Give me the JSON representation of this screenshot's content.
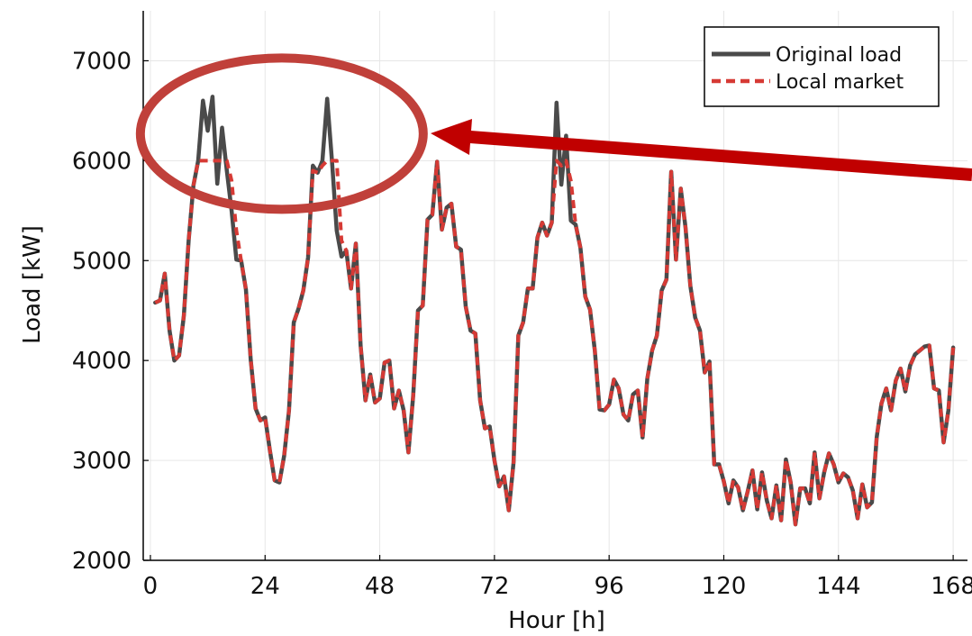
{
  "chart_data": {
    "type": "line",
    "title": "",
    "xlabel": "Hour [h]",
    "ylabel": "Load [kW]",
    "xlim": [
      -1.5,
      171
    ],
    "ylim": [
      2000,
      7500
    ],
    "xticks": [
      0,
      24,
      48,
      72,
      96,
      120,
      144,
      168
    ],
    "yticks": [
      2000,
      3000,
      4000,
      5000,
      6000,
      7000
    ],
    "grid": true,
    "legend_position": "top-right",
    "series": [
      {
        "name": "Original load",
        "color": "#4a4a4a",
        "style": "solid",
        "x": [
          1,
          2,
          3,
          4,
          5,
          6,
          7,
          8,
          9,
          10,
          11,
          12,
          13,
          14,
          15,
          16,
          17,
          18,
          19,
          20,
          21,
          22,
          23,
          24,
          25,
          26,
          27,
          28,
          29,
          30,
          31,
          32,
          33,
          34,
          35,
          36,
          37,
          38,
          39,
          40,
          41,
          42,
          43,
          44,
          45,
          46,
          47,
          48,
          49,
          50,
          51,
          52,
          53,
          54,
          55,
          56,
          57,
          58,
          59,
          60,
          61,
          62,
          63,
          64,
          65,
          66,
          67,
          68,
          69,
          70,
          71,
          72,
          73,
          74,
          75,
          76,
          77,
          78,
          79,
          80,
          81,
          82,
          83,
          84,
          85,
          86,
          87,
          88,
          89,
          90,
          91,
          92,
          93,
          94,
          95,
          96,
          97,
          98,
          99,
          100,
          101,
          102,
          103,
          104,
          105,
          106,
          107,
          108,
          109,
          110,
          111,
          112,
          113,
          114,
          115,
          116,
          117,
          118,
          119,
          120,
          121,
          122,
          123,
          124,
          125,
          126,
          127,
          128,
          129,
          130,
          131,
          132,
          133,
          134,
          135,
          136,
          137,
          138,
          139,
          140,
          141,
          142,
          143,
          144,
          145,
          146,
          147,
          148,
          149,
          150,
          151,
          152,
          153,
          154,
          155,
          156,
          157,
          158,
          159,
          160,
          161,
          162,
          163,
          164,
          165,
          166,
          167,
          168
        ],
        "values": [
          4580,
          4600,
          4870,
          4300,
          4000,
          4050,
          4450,
          5200,
          5750,
          6000,
          6600,
          6300,
          6640,
          5770,
          6330,
          5900,
          5500,
          5010,
          5000,
          4710,
          4010,
          3520,
          3400,
          3430,
          3100,
          2800,
          2780,
          3050,
          3500,
          4380,
          4520,
          4700,
          5030,
          5950,
          5880,
          6000,
          6620,
          6000,
          5300,
          5040,
          5100,
          4720,
          5170,
          4150,
          3600,
          3860,
          3580,
          3620,
          3980,
          4000,
          3520,
          3700,
          3500,
          3080,
          3650,
          4500,
          4550,
          5410,
          5460,
          5990,
          5310,
          5530,
          5570,
          5140,
          5110,
          4540,
          4300,
          4270,
          3600,
          3320,
          3340,
          3000,
          2740,
          2840,
          2500,
          2980,
          4250,
          4380,
          4720,
          4720,
          5230,
          5380,
          5250,
          5380,
          6580,
          5760,
          6250,
          5400,
          5360,
          5130,
          4640,
          4510,
          4100,
          3510,
          3500,
          3560,
          3810,
          3720,
          3460,
          3400,
          3660,
          3700,
          3230,
          3820,
          4100,
          4250,
          4700,
          4810,
          5890,
          5010,
          5720,
          5330,
          4750,
          4430,
          4300,
          3880,
          3990,
          2960,
          2960,
          2790,
          2570,
          2800,
          2730,
          2500,
          2690,
          2900,
          2510,
          2880,
          2600,
          2420,
          2750,
          2400,
          3010,
          2780,
          2360,
          2720,
          2720,
          2570,
          3080,
          2620,
          2880,
          3070,
          2960,
          2780,
          2870,
          2830,
          2700,
          2420,
          2760,
          2530,
          2580,
          3230,
          3570,
          3720,
          3500,
          3800,
          3920,
          3690,
          3950,
          4060,
          4100,
          4140,
          4150,
          3720,
          3700,
          3180,
          3500,
          4130
        ]
      },
      {
        "name": "Local market",
        "color": "#d63a35",
        "style": "dashed",
        "x": [
          1,
          2,
          3,
          4,
          5,
          6,
          7,
          8,
          9,
          10,
          11,
          12,
          13,
          14,
          15,
          16,
          17,
          18,
          19,
          20,
          21,
          22,
          23,
          24,
          25,
          26,
          27,
          28,
          29,
          30,
          31,
          32,
          33,
          34,
          35,
          36,
          37,
          38,
          39,
          40,
          41,
          42,
          43,
          44,
          45,
          46,
          47,
          48,
          49,
          50,
          51,
          52,
          53,
          54,
          55,
          56,
          57,
          58,
          59,
          60,
          61,
          62,
          63,
          64,
          65,
          66,
          67,
          68,
          69,
          70,
          71,
          72,
          73,
          74,
          75,
          76,
          77,
          78,
          79,
          80,
          81,
          82,
          83,
          84,
          85,
          86,
          87,
          88,
          89,
          90,
          91,
          92,
          93,
          94,
          95,
          96,
          97,
          98,
          99,
          100,
          101,
          102,
          103,
          104,
          105,
          106,
          107,
          108,
          109,
          110,
          111,
          112,
          113,
          114,
          115,
          116,
          117,
          118,
          119,
          120,
          121,
          122,
          123,
          124,
          125,
          126,
          127,
          128,
          129,
          130,
          131,
          132,
          133,
          134,
          135,
          136,
          137,
          138,
          139,
          140,
          141,
          142,
          143,
          144,
          145,
          146,
          147,
          148,
          149,
          150,
          151,
          152,
          153,
          154,
          155,
          156,
          157,
          158,
          159,
          160,
          161,
          162,
          163,
          164,
          165,
          166,
          167,
          168
        ],
        "values": [
          4580,
          4600,
          4870,
          4300,
          4000,
          4050,
          4450,
          5200,
          5750,
          6000,
          6000,
          6000,
          6000,
          6000,
          6000,
          6000,
          5800,
          5300,
          5000,
          4710,
          4010,
          3520,
          3400,
          3430,
          3100,
          2800,
          2780,
          3050,
          3500,
          4380,
          4520,
          4700,
          5030,
          5900,
          5880,
          5950,
          6000,
          6000,
          6000,
          5200,
          5100,
          4720,
          5170,
          4150,
          3600,
          3860,
          3580,
          3620,
          3980,
          4000,
          3520,
          3700,
          3500,
          3080,
          3650,
          4500,
          4550,
          5410,
          5460,
          5990,
          5310,
          5530,
          5570,
          5140,
          5110,
          4540,
          4300,
          4270,
          3600,
          3320,
          3340,
          3000,
          2740,
          2840,
          2500,
          2980,
          4250,
          4380,
          4720,
          4720,
          5230,
          5380,
          5250,
          5380,
          6000,
          5950,
          6000,
          5800,
          5360,
          5130,
          4640,
          4510,
          4100,
          3510,
          3500,
          3560,
          3810,
          3720,
          3460,
          3400,
          3660,
          3700,
          3230,
          3820,
          4100,
          4250,
          4700,
          4810,
          5890,
          5010,
          5720,
          5330,
          4750,
          4430,
          4300,
          3880,
          3990,
          2960,
          2960,
          2790,
          2570,
          2800,
          2730,
          2500,
          2690,
          2900,
          2510,
          2880,
          2600,
          2420,
          2750,
          2400,
          3010,
          2780,
          2360,
          2720,
          2720,
          2570,
          3080,
          2620,
          2880,
          3070,
          2960,
          2780,
          2870,
          2830,
          2700,
          2420,
          2760,
          2530,
          2580,
          3230,
          3570,
          3720,
          3500,
          3800,
          3920,
          3690,
          3950,
          4060,
          4100,
          4140,
          4150,
          3720,
          3700,
          3180,
          3500,
          4130
        ]
      }
    ]
  },
  "annotations": {
    "highlight_color": "#c0403a",
    "arrow_color": "#c00000"
  }
}
